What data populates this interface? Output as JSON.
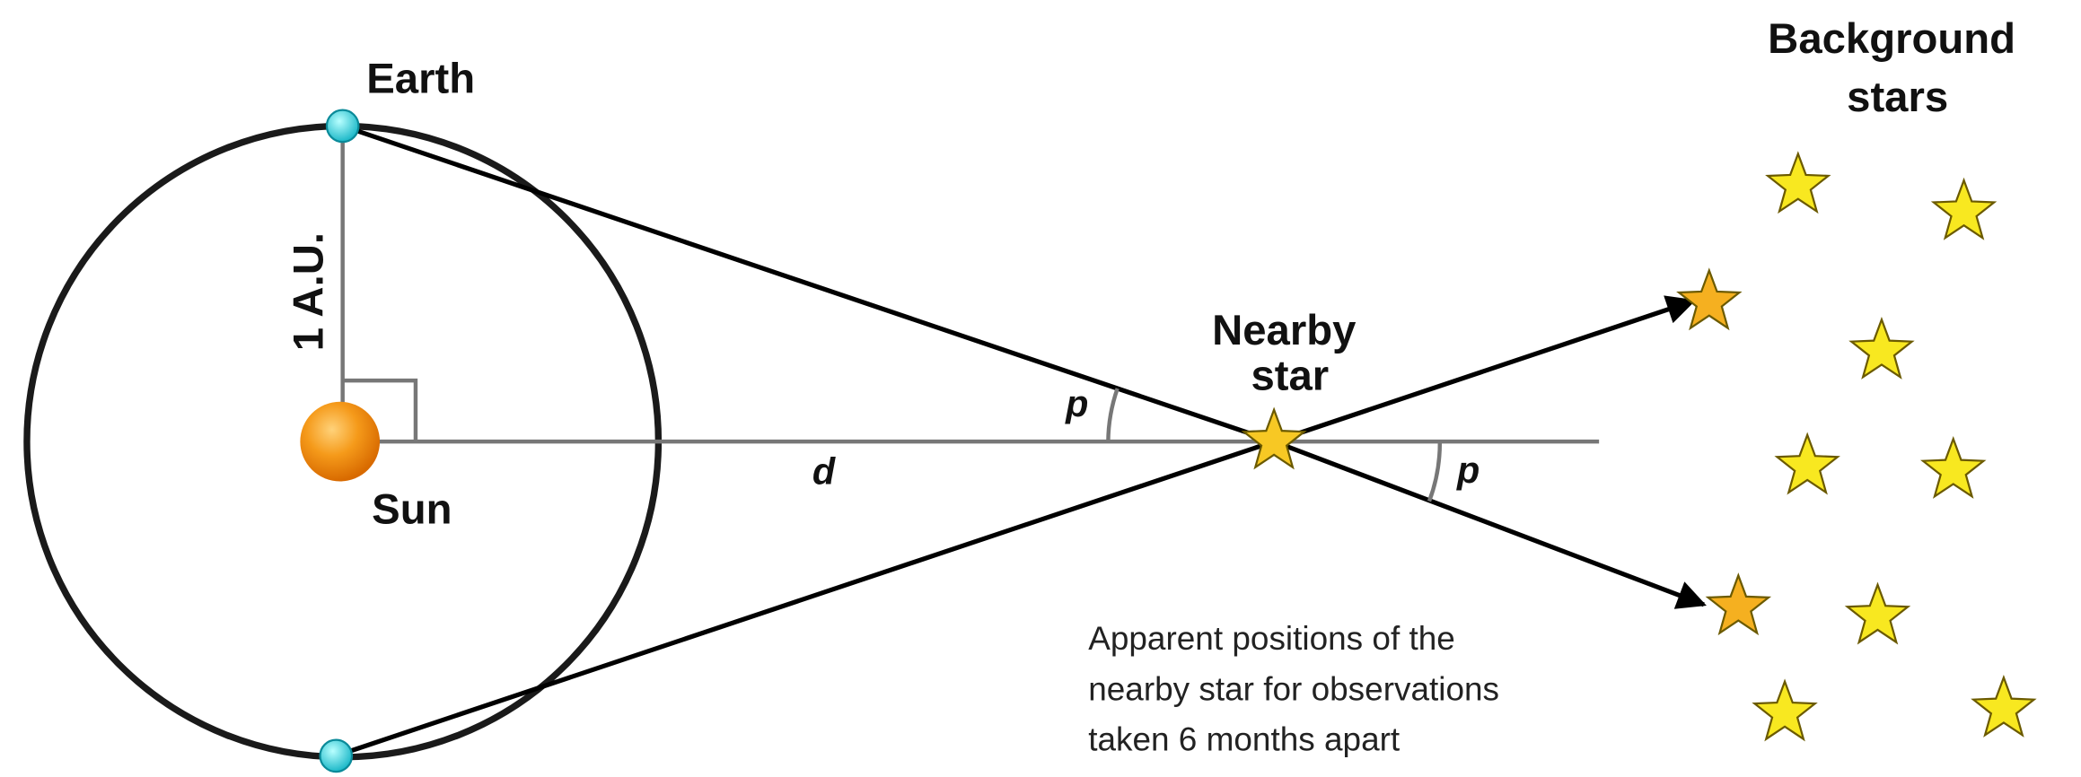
{
  "labels": {
    "earth": "Earth",
    "au": "1 A.U.",
    "sun": "Sun",
    "distance": "d",
    "parallax_near": "p",
    "parallax_far": "p",
    "nearby_star": [
      "Nearby",
      "star"
    ],
    "background_stars": [
      "Background",
      "stars"
    ],
    "caption": [
      "Apparent positions of the",
      "nearby star for observations",
      "taken 6 months apart"
    ]
  }
}
